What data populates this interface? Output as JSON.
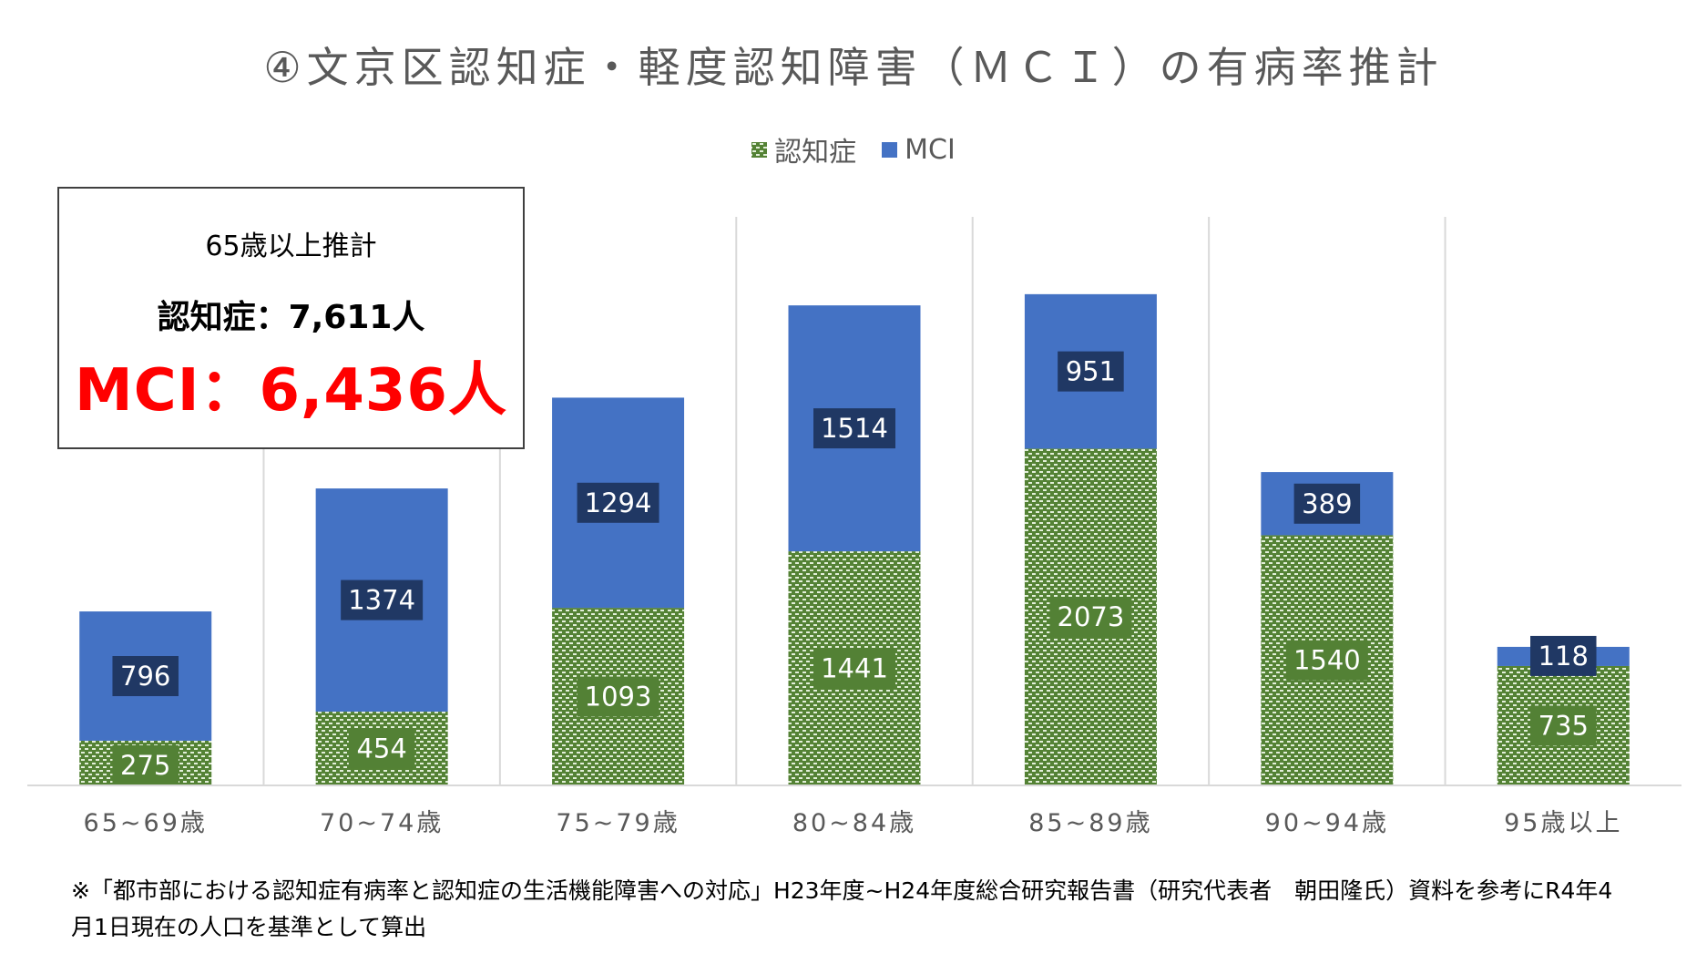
{
  "chart_data": {
    "type": "bar",
    "stacked": true,
    "title": "④文京区認知症・軽度認知障害（ＭＣＩ）の有病率推計",
    "categories": [
      "65~69歳",
      "70~74歳",
      "75~79歳",
      "80~84歳",
      "85~89歳",
      "90~94歳",
      "95歳以上"
    ],
    "series": [
      {
        "name": "認知症",
        "values": [
          275,
          454,
          1093,
          1441,
          2073,
          1540,
          735
        ],
        "color": "#548235",
        "pattern": "dotted-green"
      },
      {
        "name": "MCI",
        "values": [
          796,
          1374,
          1294,
          1514,
          951,
          389,
          118
        ],
        "color": "#4472c4"
      }
    ],
    "ylim": [
      0,
      3500
    ],
    "grid": "vertical-separators",
    "legend_position": "top-center",
    "xlabel": "",
    "ylabel": ""
  },
  "legend": {
    "dementia_label": "認知症",
    "mci_label": "MCI"
  },
  "summary": {
    "heading": "65歳以上推計",
    "dementia_line": "認知症：7,611人",
    "mci_line": "MCI：6,436人"
  },
  "footnote": {
    "line1": "※「都市部における認知症有病率と認知症の生活機能障害への対応」H23年度~H24年度総合研究報告書（研究代表者　朝田隆氏）資料を参考にR4年4",
    "line2": "月1日現在の人口を基準として算出"
  },
  "colors": {
    "mci": "#4472c4",
    "mci_label_bg": "#203864",
    "dementia_base": "#548235",
    "dementia_dot": "#e2efd9",
    "dementia_label_bg": "#538135",
    "summary_highlight": "#ff0000",
    "axis": "#d9d9d9"
  }
}
